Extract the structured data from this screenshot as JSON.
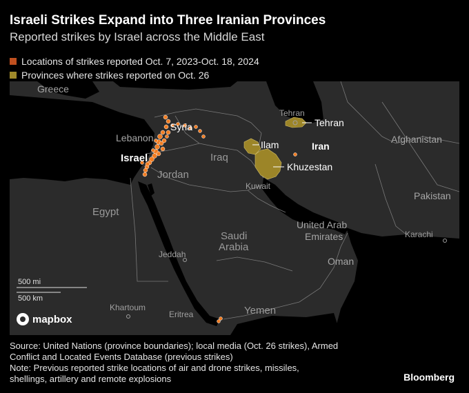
{
  "header": {
    "title": "Israeli Strikes Expand into Three Iranian Provinces",
    "subtitle": "Reported strikes by Israel across the Middle East"
  },
  "legend": {
    "items": [
      {
        "label": "Locations of strikes reported Oct. 7, 2023-Oct. 18, 2024",
        "color": "#c0501f"
      },
      {
        "label": "Provinces where strikes reported on Oct. 26",
        "color": "#a08a2a"
      }
    ]
  },
  "map": {
    "colors": {
      "land": "#2b2b2b",
      "water": "#000000",
      "border": "#7a7a7a",
      "strike": "#f27d22",
      "province": "#9c8528"
    },
    "labels": {
      "greece": "Greece",
      "syria": "Syria",
      "lebanon": "Lebanon",
      "israel": "Israel",
      "iraq": "Iraq",
      "jordan": "Jordan",
      "egypt": "Egypt",
      "saudi_arabia_1": "Saudi",
      "saudi_arabia_2": "Arabia",
      "kuwait": "Kuwait",
      "iran": "Iran",
      "tehran_small": "Tehran",
      "tehran": "Tehran",
      "ilam": "Ilam",
      "khuzestan": "Khuzestan",
      "afghanistan": "Afghanistan",
      "pakistan": "Pakistan",
      "uae_1": "United Arab",
      "uae_2": "Emirates",
      "oman": "Oman",
      "karachi": "Karachi",
      "jeddah": "Jeddah",
      "khartoum": "Khartoum",
      "eritrea": "Eritrea",
      "yemen": "Yemen"
    },
    "scale": {
      "miles": "500 mi",
      "km": "500 km"
    },
    "attribution": "mapbox"
  },
  "footer": {
    "source_lines": [
      "Source: United Nations (province boundaries); local media (Oct. 26 strikes), Armed",
      "Conflict and Located Events Database (previous strikes)",
      "Note: Previous reported strike locations of air and drone strikes, missiles,",
      "shellings, artillery and remote explosions"
    ],
    "brand": "Bloomberg"
  }
}
